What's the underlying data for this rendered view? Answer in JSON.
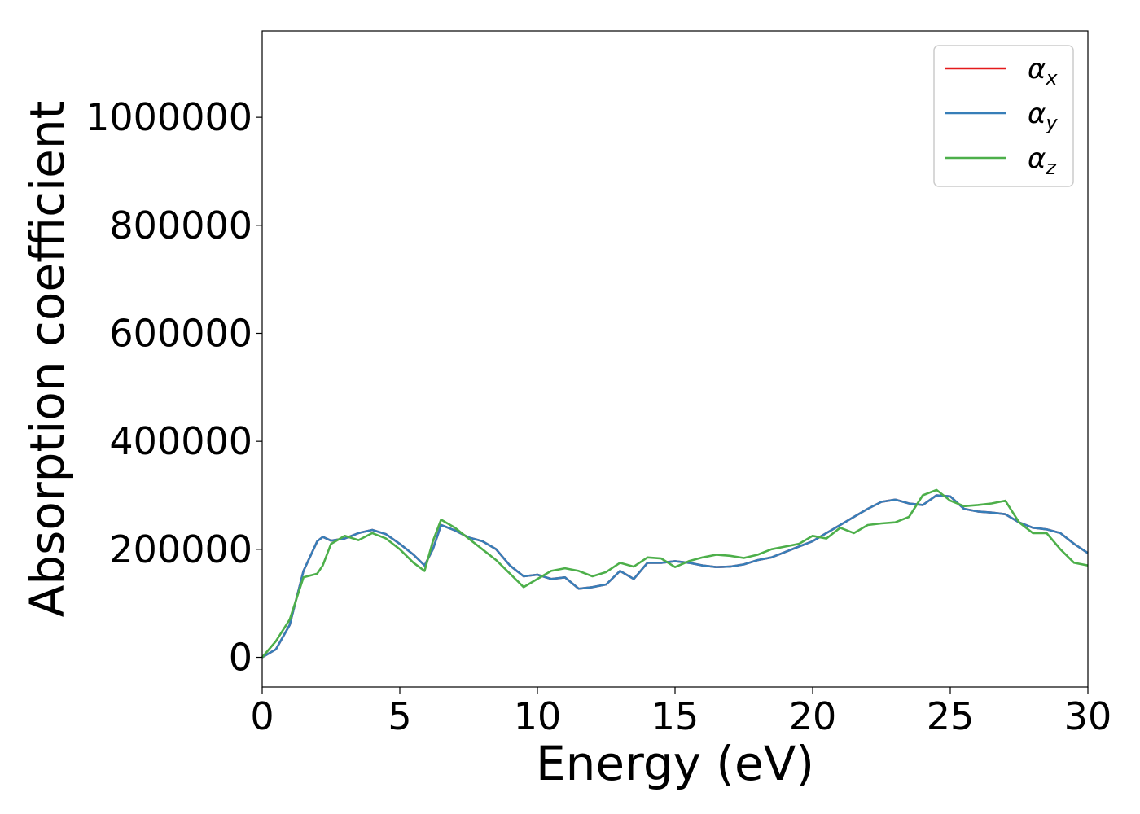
{
  "chart_data": {
    "type": "line",
    "title": "",
    "xlabel": "Energy (eV)",
    "ylabel": "Absorption coefficient",
    "xlim": [
      0,
      30
    ],
    "ylim": [
      -55000,
      1160000
    ],
    "xticks": [
      0,
      5,
      10,
      15,
      20,
      25,
      30
    ],
    "yticks": [
      0,
      200000,
      400000,
      600000,
      800000,
      1000000
    ],
    "xtick_labels": [
      "0",
      "5",
      "10",
      "15",
      "20",
      "25",
      "30"
    ],
    "ytick_labels": [
      "0",
      "200000",
      "400000",
      "600000",
      "800000",
      "1000000"
    ],
    "grid": false,
    "legend_position": "top-right",
    "x": [
      0,
      0.5,
      1.0,
      1.5,
      2.0,
      2.2,
      2.5,
      3.0,
      3.5,
      4.0,
      4.5,
      5.0,
      5.5,
      5.9,
      6.2,
      6.5,
      7.0,
      7.5,
      8.0,
      8.5,
      9.0,
      9.5,
      10.0,
      10.5,
      11.0,
      11.5,
      12.0,
      12.5,
      13.0,
      13.5,
      14.0,
      14.5,
      15.0,
      15.5,
      16.0,
      16.5,
      17.0,
      17.5,
      18.0,
      18.5,
      19.0,
      19.5,
      20.0,
      20.5,
      21.0,
      21.5,
      22.0,
      22.5,
      23.0,
      23.5,
      24.0,
      24.5,
      25.0,
      25.5,
      26.0,
      26.5,
      27.0,
      27.5,
      28.0,
      28.5,
      29.0,
      29.5,
      30.0
    ],
    "series": [
      {
        "name": "α_x",
        "legend_main": "α",
        "legend_sub": "x",
        "color": "#e41a1c",
        "values": [
          0,
          15000,
          60000,
          160000,
          215000,
          223000,
          216000,
          220000,
          230000,
          236000,
          228000,
          210000,
          190000,
          170000,
          200000,
          245000,
          235000,
          222000,
          215000,
          200000,
          170000,
          150000,
          153000,
          145000,
          148000,
          127000,
          130000,
          135000,
          160000,
          145000,
          175000,
          175000,
          178000,
          175000,
          170000,
          167000,
          168000,
          172000,
          180000,
          185000,
          195000,
          205000,
          215000,
          230000,
          245000,
          260000,
          275000,
          288000,
          292000,
          285000,
          282000,
          300000,
          298000,
          275000,
          270000,
          268000,
          265000,
          250000,
          240000,
          237000,
          230000,
          210000,
          193000
        ]
      },
      {
        "name": "α_y",
        "legend_main": "α",
        "legend_sub": "y",
        "color": "#377eb8",
        "values": [
          0,
          15000,
          60000,
          160000,
          215000,
          223000,
          216000,
          220000,
          230000,
          236000,
          228000,
          210000,
          190000,
          170000,
          200000,
          245000,
          235000,
          222000,
          215000,
          200000,
          170000,
          150000,
          153000,
          145000,
          148000,
          127000,
          130000,
          135000,
          160000,
          145000,
          175000,
          175000,
          178000,
          175000,
          170000,
          167000,
          168000,
          172000,
          180000,
          185000,
          195000,
          205000,
          215000,
          230000,
          245000,
          260000,
          275000,
          288000,
          292000,
          285000,
          282000,
          300000,
          298000,
          275000,
          270000,
          268000,
          265000,
          250000,
          240000,
          237000,
          230000,
          210000,
          193000
        ]
      },
      {
        "name": "α_z",
        "legend_main": "α",
        "legend_sub": "z",
        "color": "#4daf4a",
        "values": [
          0,
          30000,
          70000,
          148000,
          155000,
          170000,
          210000,
          225000,
          217000,
          230000,
          220000,
          200000,
          175000,
          160000,
          215000,
          255000,
          240000,
          220000,
          200000,
          180000,
          155000,
          130000,
          145000,
          160000,
          165000,
          160000,
          150000,
          158000,
          175000,
          168000,
          185000,
          183000,
          167000,
          178000,
          185000,
          190000,
          188000,
          184000,
          190000,
          200000,
          205000,
          210000,
          225000,
          220000,
          240000,
          230000,
          245000,
          248000,
          250000,
          260000,
          300000,
          310000,
          290000,
          280000,
          282000,
          285000,
          290000,
          250000,
          230000,
          230000,
          200000,
          175000,
          170000
        ]
      }
    ]
  }
}
